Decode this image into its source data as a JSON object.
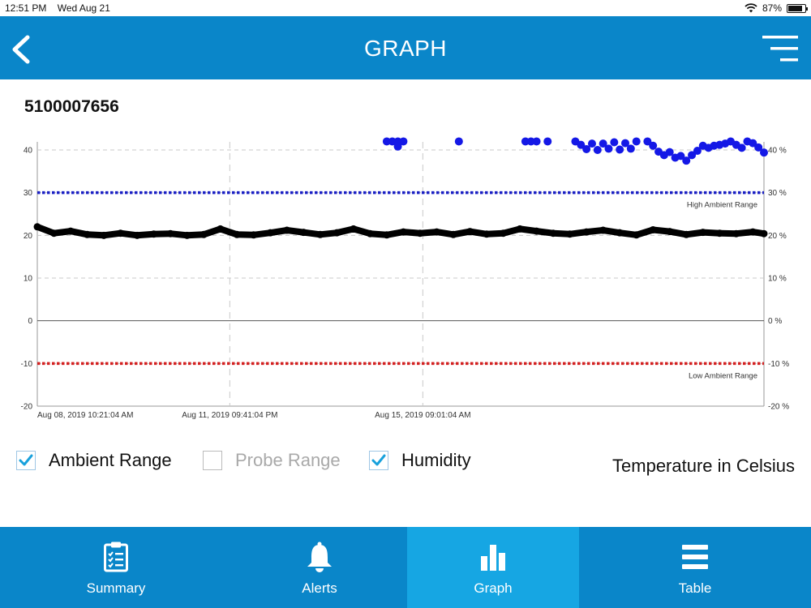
{
  "status_bar": {
    "time": "12:51 PM",
    "date": "Wed Aug 21",
    "battery": "87%",
    "battery_level": 0.87
  },
  "nav": {
    "title": "GRAPH",
    "back_icon": "chevron-left-icon",
    "menu_icon": "hamburger-menu-icon"
  },
  "device": {
    "id": "5100007656"
  },
  "chart_data": {
    "type": "scatter",
    "title": "",
    "xlabel": "",
    "ylabel": "",
    "ylim": [
      -20,
      40
    ],
    "y_ticks": [
      -20,
      -10,
      0,
      10,
      20,
      30,
      40
    ],
    "y2_ticks": [
      "-20 %",
      "-10 %",
      "0 %",
      "10 %",
      "20 %",
      "30 %",
      "40 %"
    ],
    "x_tick_labels": [
      "Aug 08, 2019 10:21:04 AM",
      "Aug 11, 2019 09:41:04 PM",
      "Aug 15, 2019 09:01:04 AM"
    ],
    "x_range_days": [
      0,
      13.1
    ],
    "x_tick_days": [
      0,
      3.47,
      6.95
    ],
    "grid": true,
    "ranges": [
      {
        "name": "High Ambient Range",
        "value": 30,
        "color": "#1a1fc4"
      },
      {
        "name": "Low Ambient Range",
        "value": -10,
        "color": "#d32020"
      }
    ],
    "series": [
      {
        "name": "Temperature",
        "color": "#000000",
        "x": [
          0,
          0.3,
          0.6,
          0.9,
          1.2,
          1.5,
          1.8,
          2.1,
          2.4,
          2.7,
          3.0,
          3.3,
          3.6,
          3.9,
          4.2,
          4.5,
          4.8,
          5.1,
          5.4,
          5.7,
          6.0,
          6.3,
          6.6,
          6.9,
          7.2,
          7.5,
          7.8,
          8.1,
          8.4,
          8.7,
          9.0,
          9.3,
          9.6,
          9.9,
          10.2,
          10.5,
          10.8,
          11.1,
          11.4,
          11.7,
          12.0,
          12.3,
          12.6,
          12.9,
          13.1
        ],
        "y": [
          22,
          20.5,
          21,
          20.2,
          20,
          20.5,
          20,
          20.3,
          20.4,
          20,
          20.2,
          21.5,
          20.2,
          20.1,
          20.6,
          21.2,
          20.7,
          20.2,
          20.6,
          21.5,
          20.4,
          20.1,
          20.8,
          20.5,
          20.8,
          20.2,
          20.9,
          20.3,
          20.5,
          21.5,
          21,
          20.5,
          20.3,
          20.8,
          21.2,
          20.6,
          20.1,
          21.3,
          20.9,
          20.2,
          20.7,
          20.5,
          20.4,
          20.8,
          20.4
        ]
      },
      {
        "name": "Humidity",
        "color": "#1418e6",
        "x": [
          6.3,
          6.4,
          6.5,
          6.6,
          6.5,
          7.6,
          8.8,
          8.9,
          9.0,
          9.2,
          9.7,
          9.8,
          9.9,
          10.0,
          10.1,
          10.2,
          10.3,
          10.4,
          10.5,
          10.6,
          10.7,
          10.8,
          11.0,
          11.1,
          11.2,
          11.3,
          11.4,
          11.5,
          11.6,
          11.7,
          11.8,
          11.9,
          12.0,
          12.1,
          12.2,
          12.3,
          12.4,
          12.5,
          12.6,
          12.7,
          12.8,
          12.9,
          13.0,
          13.1
        ],
        "y": [
          42,
          42,
          42,
          42,
          40.8,
          42,
          42,
          42,
          42,
          42,
          42,
          41.2,
          40.2,
          41.5,
          40,
          41.5,
          40.3,
          41.8,
          40.1,
          41.6,
          40.3,
          42,
          42,
          41,
          39.6,
          38.8,
          39.5,
          38.2,
          38.6,
          37.5,
          38.8,
          39.8,
          41,
          40.5,
          41,
          41.2,
          41.5,
          42,
          41.2,
          40.5,
          42,
          41.6,
          40.6,
          39.4
        ]
      }
    ]
  },
  "options": {
    "ambient_range": {
      "label": "Ambient Range",
      "checked": true
    },
    "probe_range": {
      "label": "Probe Range",
      "checked": false
    },
    "humidity": {
      "label": "Humidity",
      "checked": true
    },
    "units": "Temperature in Celsius"
  },
  "tabs": [
    {
      "label": "Summary",
      "icon": "clipboard-checklist-icon",
      "active": false
    },
    {
      "label": "Alerts",
      "icon": "bell-icon",
      "active": false
    },
    {
      "label": "Graph",
      "icon": "bar-chart-icon",
      "active": true
    },
    {
      "label": "Table",
      "icon": "list-icon",
      "active": false
    }
  ],
  "colors": {
    "brand": "#0a86c9",
    "active_tab": "#16a6e3",
    "check": "#18a1dc"
  }
}
